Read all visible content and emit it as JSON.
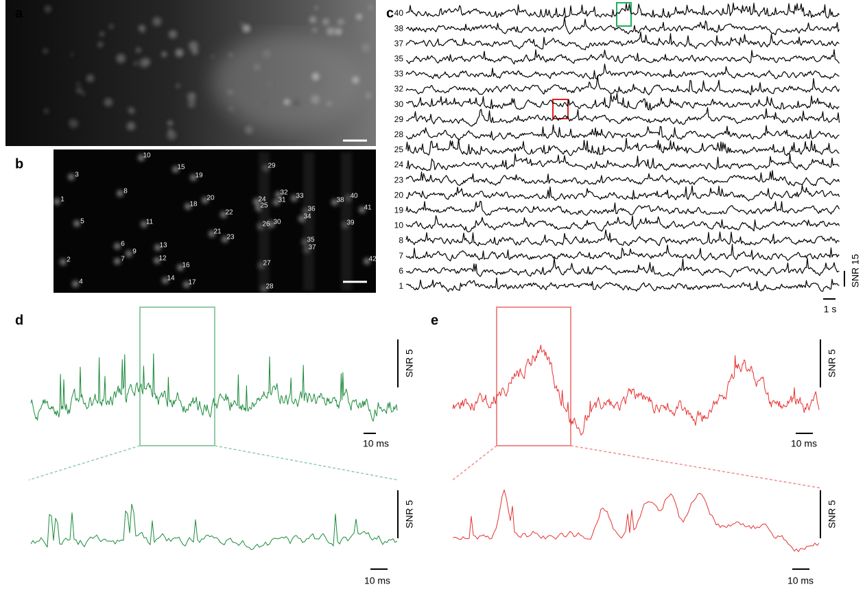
{
  "panel_labels": [
    "a",
    "b",
    "c",
    "d",
    "e"
  ],
  "neuron_labels": [
    "10",
    "15",
    "29",
    "3",
    "19",
    "8",
    "32",
    "33",
    "40",
    "1",
    "20",
    "24",
    "31",
    "38",
    "18",
    "25",
    "36",
    "41",
    "22",
    "34",
    "5",
    "11",
    "30",
    "26",
    "39",
    "21",
    "23",
    "35",
    "6",
    "13",
    "37",
    "9",
    "7",
    "12",
    "2",
    "42",
    "16",
    "27",
    "14",
    "17",
    "4",
    "28"
  ],
  "trace_labels": [
    "40",
    "38",
    "37",
    "35",
    "33",
    "32",
    "30",
    "29",
    "28",
    "25",
    "24",
    "23",
    "20",
    "19",
    "10",
    "8",
    "7",
    "6",
    "1"
  ],
  "scale_labels": {
    "c_snr": "SNR 15",
    "c_time": "1 s",
    "d_top_snr": "SNR 5",
    "d_top_time": "10 ms",
    "d_bottom_snr": "SNR 5",
    "d_bottom_time": "10 ms",
    "e_top_snr": "SNR 5",
    "e_top_time": "10 ms",
    "e_bottom_snr": "SNR 5",
    "e_bottom_time": "10 ms"
  }
}
